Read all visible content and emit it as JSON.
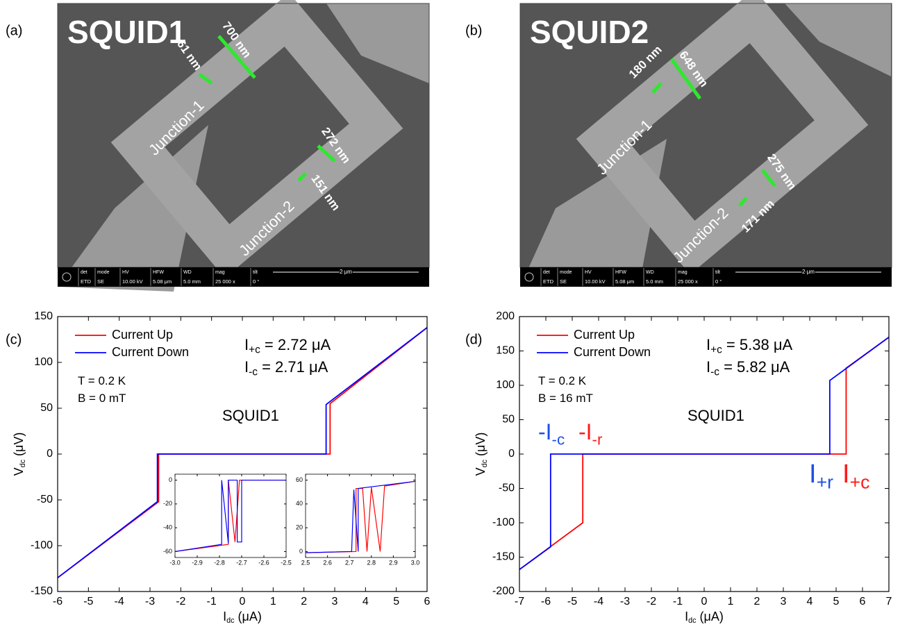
{
  "panels": [
    {
      "label": "(a)",
      "title": "SQUID1",
      "dimensions": [
        "700 nm",
        "61 nm",
        "272 nm",
        "151 nm"
      ],
      "junctions": [
        "Junction-1",
        "Junction-2"
      ],
      "info_bar": {
        "headers": [
          "det",
          "mode",
          "HV",
          "HFW",
          "WD",
          "mag",
          "tilt"
        ],
        "values": [
          "ETD",
          "SE",
          "10.00 kV",
          "5.08 μm",
          "5.0 mm",
          "25 000 x",
          "0 °"
        ],
        "scale": "2 μm"
      }
    },
    {
      "label": "(b)",
      "title": "SQUID2",
      "dimensions": [
        "648 nm",
        "180 nm",
        "275 nm",
        "171 nm"
      ],
      "junctions": [
        "Junction-1",
        "Junction-2"
      ],
      "info_bar": {
        "headers": [
          "det",
          "mode",
          "HV",
          "HFW",
          "WD",
          "mag",
          "tilt"
        ],
        "values": [
          "ETD",
          "SE",
          "10.00 kV",
          "5.08 μm",
          "5.0 mm",
          "25 000 x",
          "0 °"
        ],
        "scale": "2 μm"
      }
    }
  ],
  "chart_data": [
    {
      "type": "line",
      "panel_label": "(c)",
      "x_label": {
        "main": "I",
        "sub": "dc",
        "unit": " (μA)"
      },
      "y_label": {
        "main": "V",
        "sub": "dc",
        "unit": " (μV)"
      },
      "xlim": [
        -6,
        6
      ],
      "ylim": [
        -150,
        150
      ],
      "xticks": [
        -6,
        -5,
        -4,
        -3,
        -2,
        -1,
        0,
        1,
        2,
        3,
        4,
        5,
        6
      ],
      "yticks": [
        -150,
        -100,
        -50,
        0,
        50,
        100,
        150
      ],
      "legend": "upper left",
      "series": [
        {
          "name": "Current Up",
          "color": "#ff0000",
          "x": [
            -6,
            -2.72,
            -2.72,
            2.85,
            2.85,
            6
          ],
          "values": [
            -135,
            -52,
            0,
            0,
            55,
            138
          ]
        },
        {
          "name": "Current Down",
          "color": "#0000ff",
          "x": [
            6,
            2.72,
            2.72,
            -2.76,
            -2.76,
            -6
          ],
          "values": [
            138,
            54,
            0,
            0,
            -52,
            -135
          ]
        }
      ],
      "annotations": [
        {
          "parts": [
            {
              "text": "I"
            },
            {
              "text": "+c",
              "sub": true
            },
            {
              "text": " = 2.72 μA"
            }
          ]
        },
        {
          "parts": [
            {
              "text": "I"
            },
            {
              "text": "-c",
              "sub": true
            },
            {
              "text": " = 2.71 μA"
            }
          ]
        },
        {
          "parts": [
            {
              "text": "T = 0.2 K"
            }
          ]
        },
        {
          "parts": [
            {
              "text": "B = 0 mT"
            }
          ]
        },
        {
          "parts": [
            {
              "text": "SQUID1"
            }
          ]
        }
      ]
    },
    {
      "type": "line",
      "xlim": [
        -3,
        -2.5
      ],
      "ylim": [
        -65,
        5
      ],
      "xticks": [
        {
          "value": -3,
          "label": "-3.0"
        },
        -2.9,
        -2.8,
        -2.7,
        -2.6,
        -2.5
      ],
      "yticks": [
        -60,
        -40,
        -20,
        0
      ],
      "series": [
        {
          "color": "#ff0000",
          "x": [
            -3,
            -2.76,
            -2.76,
            -2.73,
            -2.73,
            -2.71,
            -2.71,
            -2.5
          ],
          "values": [
            -60,
            -54,
            0,
            -52,
            -52,
            0,
            0,
            0
          ]
        },
        {
          "color": "#0000ff",
          "x": [
            -2.5,
            -2.7,
            -2.7,
            -2.72,
            -2.72,
            -2.76,
            -2.76,
            -2.79,
            -2.79,
            -3
          ],
          "values": [
            0,
            0,
            -52,
            -52,
            0,
            0,
            -53,
            0,
            -54,
            -60
          ]
        }
      ]
    },
    {
      "type": "line",
      "xlim": [
        2.5,
        3
      ],
      "ylim": [
        -5,
        65
      ],
      "xticks": [
        2.5,
        2.6,
        2.7,
        2.8,
        2.9,
        {
          "value": 3,
          "label": "3.0"
        }
      ],
      "yticks": [
        0,
        20,
        40,
        60
      ],
      "series": [
        {
          "color": "#ff0000",
          "x": [
            2.5,
            2.73,
            2.73,
            2.76,
            2.78,
            2.8,
            2.84,
            2.86,
            2.86,
            3
          ],
          "values": [
            -1,
            0,
            53,
            53,
            0,
            54,
            0,
            55,
            55,
            59
          ]
        },
        {
          "color": "#0000ff",
          "x": [
            3,
            2.74,
            2.74,
            2.72,
            2.71,
            2.7,
            2.5
          ],
          "values": [
            59,
            53,
            0,
            52,
            0,
            0,
            -1
          ]
        }
      ]
    },
    {
      "type": "line",
      "panel_label": "(d)",
      "x_label": {
        "main": "I",
        "sub": "dc",
        "unit": " (μA)"
      },
      "y_label": {
        "main": "V",
        "sub": "dc",
        "unit": " (μV)"
      },
      "xlim": [
        -7,
        7
      ],
      "ylim": [
        -200,
        200
      ],
      "xticks": [
        -7,
        -6,
        -5,
        -4,
        -3,
        -2,
        -1,
        0,
        1,
        2,
        3,
        4,
        5,
        6,
        7
      ],
      "yticks": [
        -200,
        -150,
        -100,
        -50,
        0,
        50,
        100,
        150,
        200
      ],
      "legend": "upper left",
      "series": [
        {
          "name": "Current Up",
          "color": "#ff0000",
          "x": [
            -7,
            -4.6,
            -4.6,
            5.38,
            5.38,
            7
          ],
          "values": [
            -168,
            -100,
            0,
            0,
            125,
            170
          ]
        },
        {
          "name": "Current Down",
          "color": "#0000ff",
          "x": [
            7,
            4.76,
            4.76,
            -5.82,
            -5.82,
            -7
          ],
          "values": [
            170,
            107,
            0,
            0,
            -135,
            -168
          ]
        }
      ],
      "annotations": [
        {
          "parts": [
            {
              "text": "I"
            },
            {
              "text": "+c",
              "sub": true
            },
            {
              "text": " = 5.38 μA"
            }
          ]
        },
        {
          "parts": [
            {
              "text": "I"
            },
            {
              "text": "-c",
              "sub": true
            },
            {
              "text": " = 5.82 μA"
            }
          ]
        },
        {
          "parts": [
            {
              "text": "T = 0.2 K"
            }
          ]
        },
        {
          "parts": [
            {
              "text": "B = 16 mT"
            }
          ]
        },
        {
          "parts": [
            {
              "text": "SQUID1"
            }
          ]
        },
        {
          "color": "#1e50e6",
          "parts": [
            {
              "text": "-I"
            },
            {
              "text": "-c",
              "sub": true
            }
          ]
        },
        {
          "color": "#ff1a1a",
          "parts": [
            {
              "text": "-I"
            },
            {
              "text": "-r",
              "sub": true
            }
          ]
        },
        {
          "color": "#1e50e6",
          "parts": [
            {
              "text": "I"
            },
            {
              "text": "+r",
              "sub": true
            }
          ]
        },
        {
          "color": "#ff1a1a",
          "parts": [
            {
              "text": "I"
            },
            {
              "text": "+c",
              "sub": true
            }
          ]
        }
      ]
    }
  ]
}
